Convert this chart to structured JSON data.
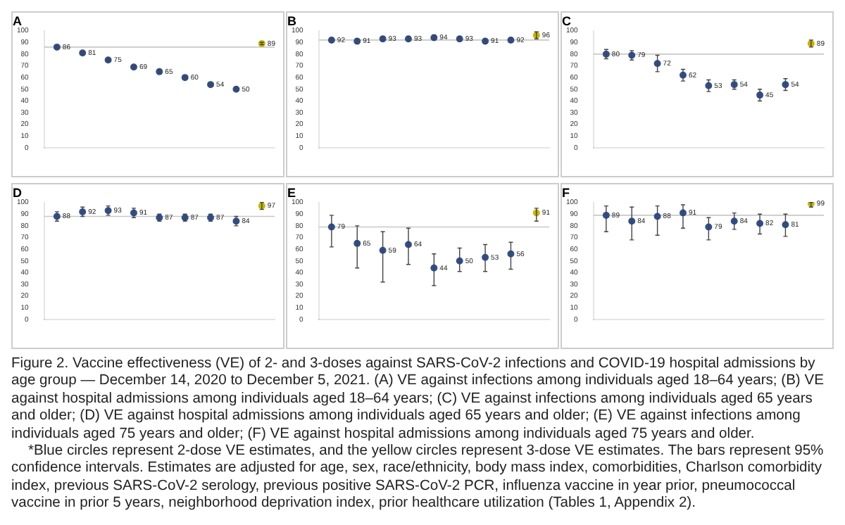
{
  "chart_data": [
    {
      "type": "scatter",
      "title": "A",
      "categories": [
        null,
        null,
        null,
        null,
        null,
        null,
        null,
        null,
        null
      ],
      "ylim": [
        0,
        100
      ],
      "yticks": [
        0,
        10,
        20,
        30,
        40,
        50,
        60,
        70,
        80,
        90,
        100
      ],
      "marker": "circle",
      "data_labels": true,
      "ref_lines": [
        {
          "axis": "y",
          "value": 86,
          "color": "#c8c8c8"
        }
      ],
      "series": [
        {
          "color": "#2f4f8f",
          "values": [
            86,
            81,
            75,
            69,
            65,
            60,
            54,
            50,
            null
          ],
          "errors": [
            1,
            1,
            1,
            1,
            1,
            1,
            1,
            1,
            null
          ]
        },
        {
          "color": "#c8b400",
          "values": [
            null,
            null,
            null,
            null,
            null,
            null,
            null,
            null,
            89
          ],
          "errors": [
            null,
            null,
            null,
            null,
            null,
            null,
            null,
            null,
            1
          ]
        }
      ],
      "annotations": [
        "Figure 2. Vaccine effectiveness (VE) of 2- and 3-doses against SARS-CoV-2 infections and COVID-19 hospital admissions by age group — December 14, 2020 to December 5, 2021. (A) VE against infections among individuals aged 18–64 years; (B) VE against hospital admissions among individuals aged 18–64 years; (C) VE against infections among individuals aged 65 years and older; (D) VE against hospital admissions among individuals aged 65 years and older; (E) VE against infections among individuals aged 75 years and older; (F) VE against hospital admissions among individuals aged 75 years and older.",
        "*Blue circles represent 2-dose VE estimates, and the yellow circles represent 3-dose VE estimates. The bars represent 95% confidence intervals. Estimates are adjusted for age, sex, race/ethnicity, body mass index, comorbidities, Charlson comorbidity index, previous SARS-CoV-2 serology, previous positive SARS-CoV-2 PCR, influenza vaccine in year prior, pneumococcal vaccine in prior 5 years, neighborhood deprivation index, prior healthcare utilization (Tables 1, Appendix 2)."
      ]
    },
    {
      "type": "scatter",
      "title": "B",
      "categories": [
        null,
        null,
        null,
        null,
        null,
        null,
        null,
        null,
        null
      ],
      "ylim": [
        0,
        100
      ],
      "yticks": [
        0,
        10,
        20,
        30,
        40,
        50,
        60,
        70,
        80,
        90,
        100
      ],
      "marker": "circle",
      "data_labels": true,
      "ref_lines": [
        {
          "axis": "y",
          "value": 92,
          "color": "#c8c8c8"
        }
      ],
      "series": [
        {
          "color": "#2f4f8f",
          "values": [
            92,
            91,
            93,
            93,
            94,
            93,
            91,
            92,
            null
          ],
          "errors": [
            2,
            2,
            2,
            2,
            2,
            2,
            2,
            2,
            null
          ]
        },
        {
          "color": "#c8b400",
          "values": [
            null,
            null,
            null,
            null,
            null,
            null,
            null,
            null,
            96
          ],
          "errors": [
            null,
            null,
            null,
            null,
            null,
            null,
            null,
            null,
            3
          ]
        }
      ]
    },
    {
      "type": "scatter",
      "title": "C",
      "categories": [
        null,
        null,
        null,
        null,
        null,
        null,
        null,
        null,
        null
      ],
      "ylim": [
        0,
        100
      ],
      "yticks": [
        0,
        10,
        20,
        30,
        40,
        50,
        60,
        70,
        80,
        90,
        100
      ],
      "marker": "circle",
      "data_labels": true,
      "ref_lines": [
        {
          "axis": "y",
          "value": 80,
          "color": "#c8c8c8"
        }
      ],
      "series": [
        {
          "color": "#2f4f8f",
          "values": [
            80,
            79,
            72,
            62,
            53,
            54,
            45,
            54,
            null
          ],
          "errors": [
            4,
            4,
            7,
            5,
            5,
            4,
            5,
            5,
            null
          ]
        },
        {
          "color": "#c8b400",
          "values": [
            null,
            null,
            null,
            null,
            null,
            null,
            null,
            null,
            89
          ],
          "errors": [
            null,
            null,
            null,
            null,
            null,
            null,
            null,
            null,
            3
          ]
        }
      ]
    },
    {
      "type": "scatter",
      "title": "D",
      "categories": [
        null,
        null,
        null,
        null,
        null,
        null,
        null,
        null,
        null
      ],
      "ylim": [
        0,
        100
      ],
      "yticks": [
        0,
        10,
        20,
        30,
        40,
        50,
        60,
        70,
        80,
        90,
        100
      ],
      "marker": "circle",
      "data_labels": true,
      "ref_lines": [
        {
          "axis": "y",
          "value": 88,
          "color": "#c8c8c8"
        }
      ],
      "series": [
        {
          "color": "#2f4f8f",
          "values": [
            88,
            92,
            93,
            91,
            87,
            87,
            87,
            84,
            null
          ],
          "errors": [
            4,
            4,
            4,
            4,
            3,
            3,
            3,
            4,
            null
          ]
        },
        {
          "color": "#c8b400",
          "values": [
            null,
            null,
            null,
            null,
            null,
            null,
            null,
            null,
            97
          ],
          "errors": [
            null,
            null,
            null,
            null,
            null,
            null,
            null,
            null,
            3
          ]
        }
      ]
    },
    {
      "type": "scatter",
      "title": "E",
      "categories": [
        null,
        null,
        null,
        null,
        null,
        null,
        null,
        null,
        null
      ],
      "ylim": [
        0,
        100
      ],
      "yticks": [
        0,
        10,
        20,
        30,
        40,
        50,
        60,
        70,
        80,
        90,
        100
      ],
      "marker": "circle",
      "data_labels": true,
      "ref_lines": [
        {
          "axis": "y",
          "value": 79,
          "color": "#c8c8c8"
        }
      ],
      "series": [
        {
          "color": "#2f4f8f",
          "values": [
            79,
            65,
            59,
            64,
            44,
            50,
            53,
            56,
            null
          ],
          "errors": [
            [
              62,
              89
            ],
            [
              44,
              80
            ],
            [
              32,
              75
            ],
            [
              47,
              78
            ],
            [
              29,
              56
            ],
            [
              41,
              61
            ],
            [
              41,
              64
            ],
            [
              43,
              66
            ],
            null
          ]
        },
        {
          "color": "#c8b400",
          "values": [
            null,
            null,
            null,
            null,
            null,
            null,
            null,
            null,
            91
          ],
          "errors": [
            null,
            null,
            null,
            null,
            null,
            null,
            null,
            null,
            [
              84,
              95
            ]
          ]
        }
      ]
    },
    {
      "type": "scatter",
      "title": "F",
      "categories": [
        null,
        null,
        null,
        null,
        null,
        null,
        null,
        null,
        null
      ],
      "ylim": [
        0,
        100
      ],
      "yticks": [
        0,
        10,
        20,
        30,
        40,
        50,
        60,
        70,
        80,
        90,
        100
      ],
      "marker": "circle",
      "data_labels": true,
      "ref_lines": [
        {
          "axis": "y",
          "value": 89,
          "color": "#c8c8c8"
        }
      ],
      "series": [
        {
          "color": "#2f4f8f",
          "values": [
            89,
            84,
            88,
            91,
            79,
            84,
            82,
            81,
            null
          ],
          "errors": [
            [
              75,
              97
            ],
            [
              68,
              96
            ],
            [
              72,
              97
            ],
            [
              78,
              98
            ],
            [
              68,
              87
            ],
            [
              77,
              91
            ],
            [
              73,
              90
            ],
            [
              71,
              90
            ],
            null
          ]
        },
        {
          "color": "#c8b400",
          "values": [
            null,
            null,
            null,
            null,
            null,
            null,
            null,
            null,
            99
          ],
          "errors": [
            null,
            null,
            null,
            null,
            null,
            null,
            null,
            null,
            [
              96,
              100
            ]
          ]
        }
      ]
    }
  ]
}
